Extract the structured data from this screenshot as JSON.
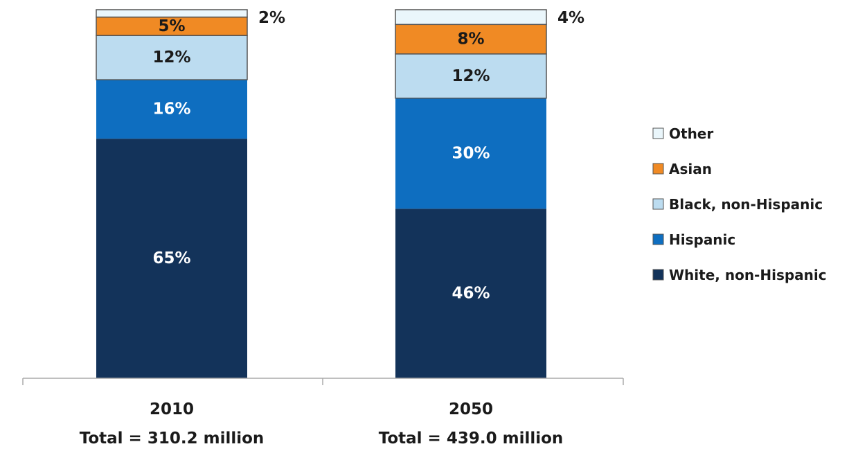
{
  "chart_data": {
    "type": "bar",
    "stacked": true,
    "normalized": true,
    "categories": [
      "2010",
      "2050"
    ],
    "category_subtitles": [
      "Total = 310.2 million",
      "Total = 439.0 million"
    ],
    "series": [
      {
        "name": "White, non-Hispanic",
        "values": [
          65,
          46
        ],
        "labels": [
          "65%",
          "46%"
        ],
        "color": "#13335a"
      },
      {
        "name": "Hispanic",
        "values": [
          16,
          30
        ],
        "labels": [
          "16%",
          "30%"
        ],
        "color": "#0e6ec0"
      },
      {
        "name": "Black, non-Hispanic",
        "values": [
          12,
          12
        ],
        "labels": [
          "12%",
          "12%"
        ],
        "color": "#bcdcf0"
      },
      {
        "name": "Asian",
        "values": [
          5,
          8
        ],
        "labels": [
          "5%",
          "8%"
        ],
        "color": "#f08a24"
      },
      {
        "name": "Other",
        "values": [
          2,
          4
        ],
        "labels": [
          "2%",
          "4%"
        ],
        "color": "#eaf6fb"
      }
    ],
    "legend_order": [
      "Other",
      "Asian",
      "Black, non-Hispanic",
      "Hispanic",
      "White, non-Hispanic"
    ],
    "legend_position": "right",
    "grid": false,
    "ylim": [
      0,
      100
    ]
  }
}
